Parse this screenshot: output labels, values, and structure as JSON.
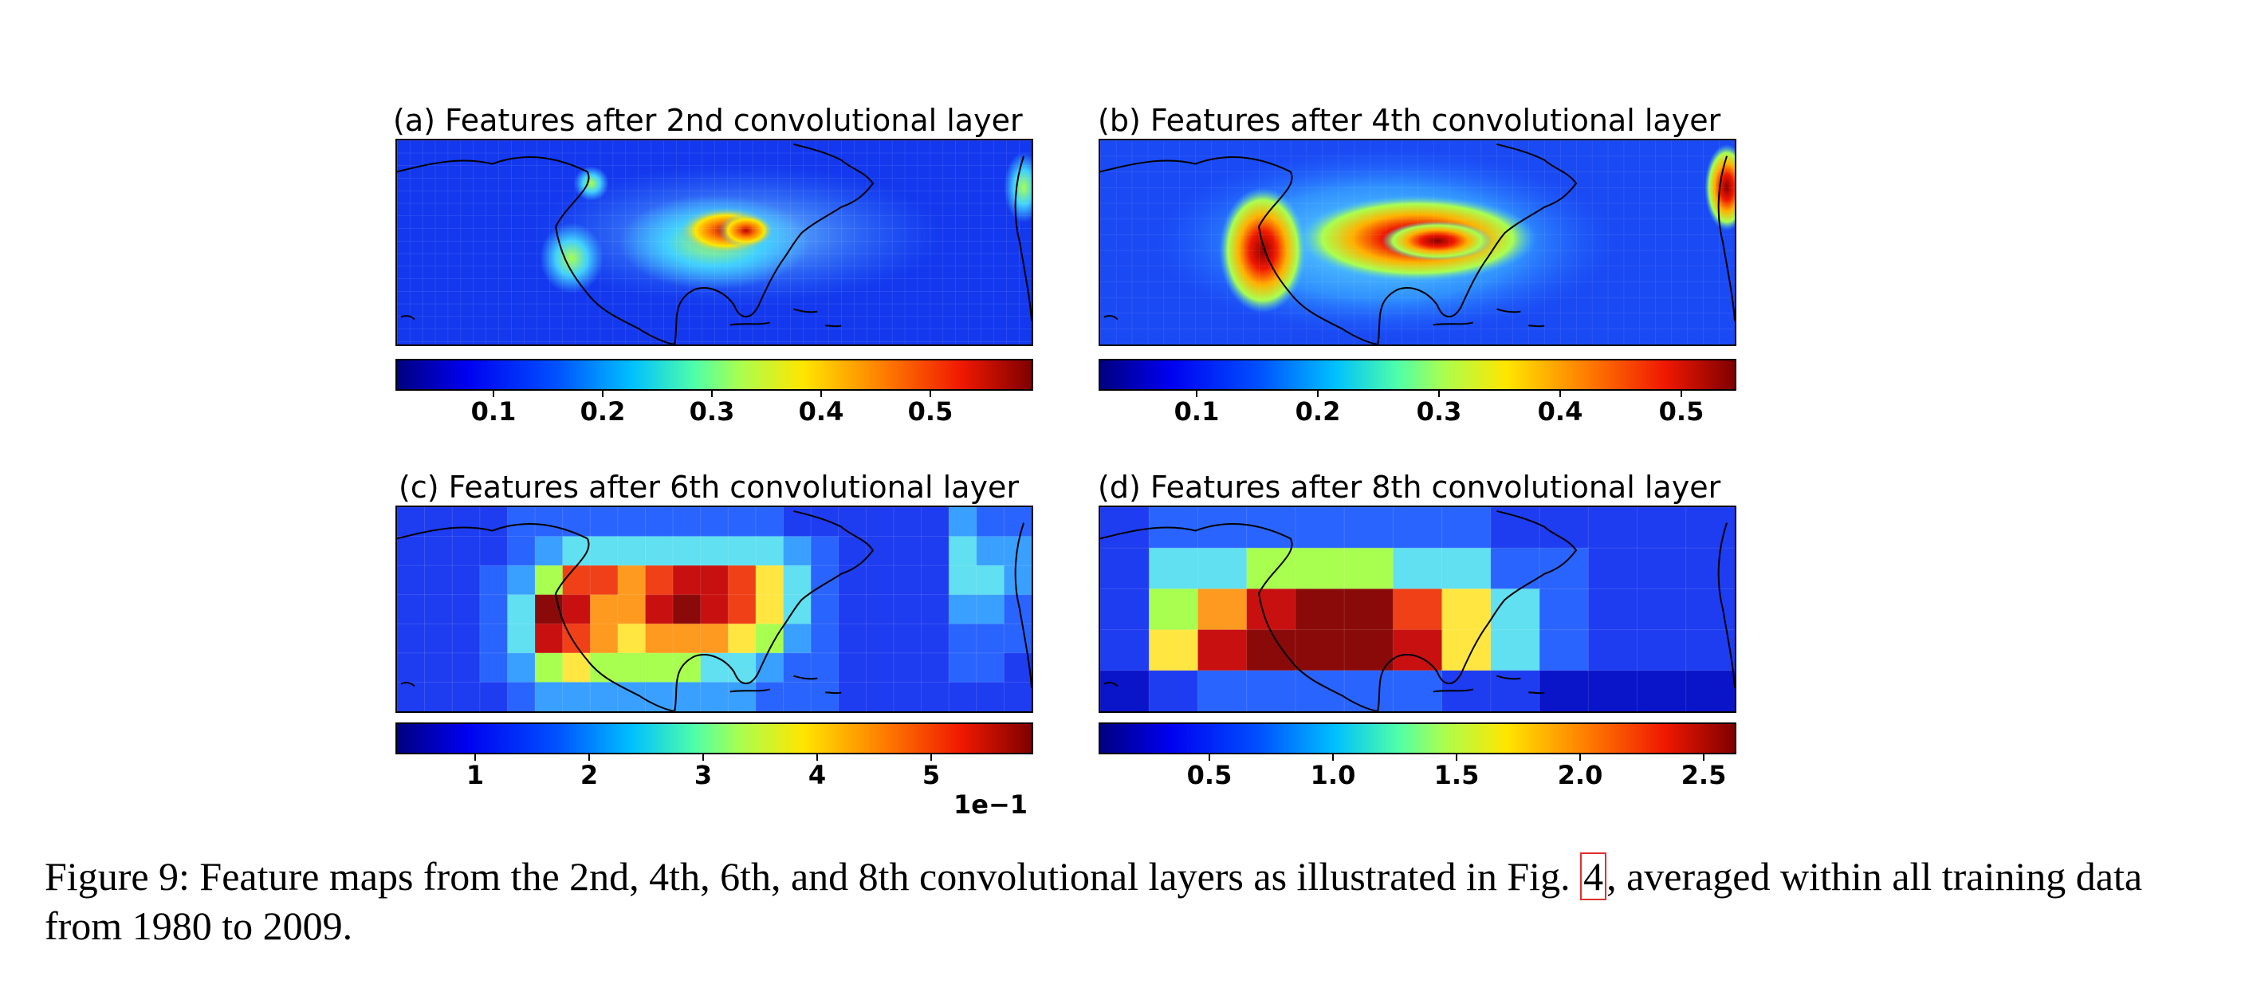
{
  "panels": [
    {
      "title": "(a) Features after 2nd convolutional layer",
      "colorbar": {
        "ticks": [
          "0.1",
          "0.2",
          "0.3",
          "0.4",
          "0.5"
        ],
        "offset": ""
      }
    },
    {
      "title": "(b) Features after 4th convolutional layer",
      "colorbar": {
        "ticks": [
          "0.1",
          "0.2",
          "0.3",
          "0.4",
          "0.5"
        ],
        "offset": ""
      }
    },
    {
      "title": "(c) Features after 6th convolutional layer",
      "colorbar": {
        "ticks": [
          "1",
          "2",
          "3",
          "4",
          "5"
        ],
        "offset": "1e−1"
      }
    },
    {
      "title": "(d) Features after 8th convolutional layer",
      "colorbar": {
        "ticks": [
          "0.5",
          "1.0",
          "1.5",
          "2.0",
          "2.5"
        ],
        "offset": ""
      }
    }
  ],
  "caption": {
    "before": "Figure 9: Feature maps from the 2nd, 4th, 6th, and 8th convolutional layers as illustrated in Fig. ",
    "ref": "4",
    "after": ", averaged within all training data from 1980 to 2009."
  },
  "colors": {
    "low": "#00007f",
    "mid": "#50ffa8",
    "high": "#7f0000"
  }
}
